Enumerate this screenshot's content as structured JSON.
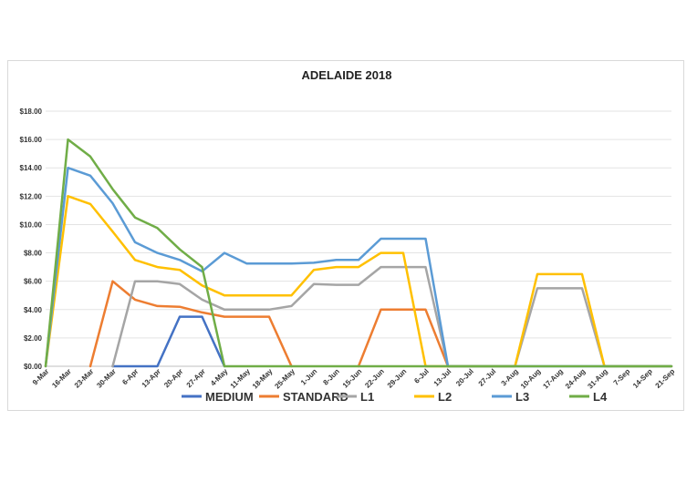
{
  "chart_data": {
    "type": "line",
    "title": "ADELAIDE 2018",
    "xlabel": "",
    "ylabel": "",
    "ylim": [
      0,
      18
    ],
    "yticks": [
      "$0.00",
      "$2.00",
      "$4.00",
      "$6.00",
      "$8.00",
      "$10.00",
      "$12.00",
      "$14.00",
      "$16.00",
      "$18.00"
    ],
    "grid": true,
    "legend_position": "bottom",
    "categories": [
      "9-Mar",
      "16-Mar",
      "23-Mar",
      "30-Mar",
      "6-Apr",
      "13-Apr",
      "20-Apr",
      "27-Apr",
      "4-May",
      "11-May",
      "18-May",
      "25-May",
      "1-Jun",
      "8-Jun",
      "15-Jun",
      "22-Jun",
      "29-Jun",
      "6-Jul",
      "13-Jul",
      "20-Jul",
      "27-Jul",
      "3-Aug",
      "10-Aug",
      "17-Aug",
      "24-Aug",
      "31-Aug",
      "7-Sep",
      "14-Sep",
      "21-Sep"
    ],
    "series": [
      {
        "name": "MEDIUM",
        "color": "#4472C4",
        "values": [
          null,
          null,
          null,
          0,
          0,
          0,
          3.5,
          3.5,
          0,
          null,
          null,
          null,
          null,
          null,
          null,
          null,
          null,
          null,
          null,
          null,
          null,
          null,
          null,
          null,
          null,
          null,
          null,
          null,
          null
        ]
      },
      {
        "name": "STANDARD",
        "color": "#ED7D31",
        "values": [
          null,
          null,
          0,
          6.0,
          4.7,
          4.25,
          4.2,
          3.8,
          3.5,
          3.5,
          3.5,
          0,
          null,
          null,
          0,
          4.0,
          4.0,
          4.0,
          0,
          null,
          null,
          null,
          null,
          null,
          null,
          null,
          null,
          null,
          null
        ]
      },
      {
        "name": "L1",
        "color": "#A5A5A5",
        "values": [
          null,
          null,
          null,
          0,
          6.0,
          6.0,
          5.8,
          4.7,
          4.0,
          4.0,
          4.0,
          4.25,
          5.8,
          5.75,
          5.75,
          7.0,
          7.0,
          7.0,
          0,
          0,
          0,
          0,
          5.5,
          5.5,
          5.5,
          0,
          0,
          0,
          0
        ]
      },
      {
        "name": "L2",
        "color": "#FFC000",
        "values": [
          0,
          12.0,
          11.45,
          9.5,
          7.5,
          7.0,
          6.8,
          5.7,
          5.0,
          5.0,
          5.0,
          5.0,
          6.8,
          7.0,
          7.0,
          8.0,
          8.0,
          0,
          0,
          0,
          0,
          0,
          6.5,
          6.5,
          6.5,
          0,
          0,
          0,
          0
        ]
      },
      {
        "name": "L3",
        "color": "#5B9BD5",
        "values": [
          0,
          14.0,
          13.45,
          11.5,
          8.75,
          8.0,
          7.5,
          6.7,
          8.0,
          7.25,
          7.25,
          7.25,
          7.3,
          7.5,
          7.5,
          9.0,
          9.0,
          9.0,
          0,
          0,
          0,
          0,
          0,
          0,
          0,
          0,
          0,
          0,
          0
        ]
      },
      {
        "name": "L4",
        "color": "#70AD47",
        "values": [
          0,
          16.0,
          14.8,
          12.5,
          10.5,
          9.75,
          8.25,
          7.0,
          0,
          0,
          0,
          0,
          0,
          0,
          0,
          0,
          0,
          0,
          0,
          0,
          0,
          0,
          0,
          0,
          0,
          0,
          0,
          0,
          0
        ]
      }
    ]
  }
}
